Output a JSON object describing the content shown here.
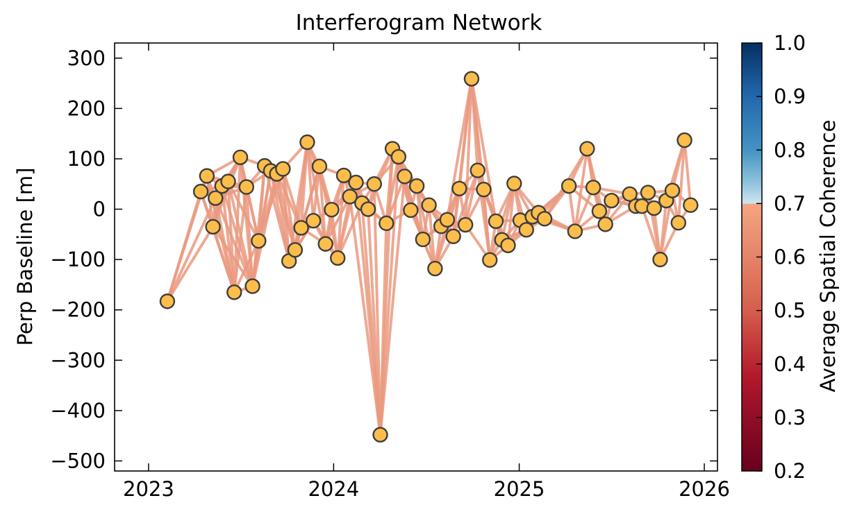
{
  "chart_data": {
    "type": "scatter",
    "title": "Interferogram Network",
    "xlabel": "",
    "ylabel": "Perp Baseline [m]",
    "xlim": [
      "2022-10-26",
      "2026-01-27"
    ],
    "ylim": [
      -520,
      330
    ],
    "x_ticks": [
      "2023",
      "2024",
      "2025",
      "2026"
    ],
    "y_ticks": [
      300,
      200,
      100,
      0,
      -100,
      -200,
      -300,
      -400,
      -500
    ],
    "y_tick_labels": [
      "300",
      "200",
      "100",
      "0",
      "−100",
      "−200",
      "−300",
      "−400",
      "−500"
    ],
    "grid": false,
    "node_color": "#fdbd4a",
    "node_edge_color": "#3d3d3d",
    "edge_color": "#ea9a80",
    "colorbar": {
      "label": "Average Spatial Coherence",
      "colormap": "RdBu",
      "range": [
        0.2,
        1.0
      ],
      "grey_above": 0.7,
      "ticks": [
        1.0,
        0.9,
        0.8,
        0.7,
        0.6,
        0.5,
        0.4,
        0.3,
        0.2
      ],
      "tick_labels": [
        "1.0",
        "0.9",
        "0.8",
        "0.7",
        "0.6",
        "0.5",
        "0.4",
        "0.3",
        "0.2"
      ]
    },
    "nodes": [
      {
        "date": "2023-02-07",
        "bperp": -183
      },
      {
        "date": "2023-04-14",
        "bperp": 35
      },
      {
        "date": "2023-04-26",
        "bperp": 66
      },
      {
        "date": "2023-05-08",
        "bperp": -35
      },
      {
        "date": "2023-05-13",
        "bperp": 22
      },
      {
        "date": "2023-05-26",
        "bperp": 46
      },
      {
        "date": "2023-06-07",
        "bperp": 55
      },
      {
        "date": "2023-06-19",
        "bperp": -165
      },
      {
        "date": "2023-07-01",
        "bperp": 103
      },
      {
        "date": "2023-07-13",
        "bperp": 44
      },
      {
        "date": "2023-07-25",
        "bperp": -153
      },
      {
        "date": "2023-08-06",
        "bperp": -63
      },
      {
        "date": "2023-08-18",
        "bperp": 86
      },
      {
        "date": "2023-08-30",
        "bperp": 76
      },
      {
        "date": "2023-09-11",
        "bperp": 70
      },
      {
        "date": "2023-09-23",
        "bperp": 80
      },
      {
        "date": "2023-10-05",
        "bperp": -103
      },
      {
        "date": "2023-10-17",
        "bperp": -81
      },
      {
        "date": "2023-10-29",
        "bperp": -37
      },
      {
        "date": "2023-11-10",
        "bperp": 133
      },
      {
        "date": "2023-11-22",
        "bperp": -23
      },
      {
        "date": "2023-12-04",
        "bperp": 85
      },
      {
        "date": "2023-12-16",
        "bperp": -69
      },
      {
        "date": "2023-12-28",
        "bperp": -1
      },
      {
        "date": "2024-01-09",
        "bperp": -97
      },
      {
        "date": "2024-01-21",
        "bperp": 67
      },
      {
        "date": "2024-02-02",
        "bperp": 25
      },
      {
        "date": "2024-02-14",
        "bperp": 53
      },
      {
        "date": "2024-02-26",
        "bperp": 12
      },
      {
        "date": "2024-03-09",
        "bperp": 0
      },
      {
        "date": "2024-03-21",
        "bperp": 50
      },
      {
        "date": "2024-04-02",
        "bperp": -448
      },
      {
        "date": "2024-04-14",
        "bperp": -28
      },
      {
        "date": "2024-04-26",
        "bperp": 120
      },
      {
        "date": "2024-05-08",
        "bperp": 104
      },
      {
        "date": "2024-05-20",
        "bperp": 65
      },
      {
        "date": "2024-06-01",
        "bperp": -2
      },
      {
        "date": "2024-06-13",
        "bperp": 46
      },
      {
        "date": "2024-06-25",
        "bperp": -60
      },
      {
        "date": "2024-07-07",
        "bperp": 8
      },
      {
        "date": "2024-07-19",
        "bperp": -118
      },
      {
        "date": "2024-07-31",
        "bperp": -34
      },
      {
        "date": "2024-08-12",
        "bperp": -21
      },
      {
        "date": "2024-08-24",
        "bperp": -54
      },
      {
        "date": "2024-09-05",
        "bperp": 41
      },
      {
        "date": "2024-09-17",
        "bperp": -31
      },
      {
        "date": "2024-09-29",
        "bperp": 259
      },
      {
        "date": "2024-10-11",
        "bperp": 77
      },
      {
        "date": "2024-10-23",
        "bperp": 39
      },
      {
        "date": "2024-11-04",
        "bperp": -101
      },
      {
        "date": "2024-11-16",
        "bperp": -24
      },
      {
        "date": "2024-11-28",
        "bperp": -61
      },
      {
        "date": "2024-12-10",
        "bperp": -72
      },
      {
        "date": "2024-12-22",
        "bperp": 51
      },
      {
        "date": "2025-01-03",
        "bperp": -22
      },
      {
        "date": "2025-01-15",
        "bperp": -41
      },
      {
        "date": "2025-01-27",
        "bperp": -15
      },
      {
        "date": "2025-02-08",
        "bperp": -7
      },
      {
        "date": "2025-02-20",
        "bperp": -19
      },
      {
        "date": "2025-04-09",
        "bperp": 46
      },
      {
        "date": "2025-04-21",
        "bperp": -44
      },
      {
        "date": "2025-05-15",
        "bperp": 120
      },
      {
        "date": "2025-05-27",
        "bperp": 43
      },
      {
        "date": "2025-06-08",
        "bperp": -4
      },
      {
        "date": "2025-06-20",
        "bperp": -30
      },
      {
        "date": "2025-07-02",
        "bperp": 17
      },
      {
        "date": "2025-08-07",
        "bperp": 30
      },
      {
        "date": "2025-08-19",
        "bperp": 6
      },
      {
        "date": "2025-08-31",
        "bperp": 6
      },
      {
        "date": "2025-09-12",
        "bperp": 33
      },
      {
        "date": "2025-09-24",
        "bperp": 2
      },
      {
        "date": "2025-10-06",
        "bperp": -100
      },
      {
        "date": "2025-10-18",
        "bperp": 17
      },
      {
        "date": "2025-10-30",
        "bperp": 37
      },
      {
        "date": "2025-11-11",
        "bperp": -27
      },
      {
        "date": "2025-11-23",
        "bperp": 137
      },
      {
        "date": "2025-12-05",
        "bperp": 8
      }
    ],
    "pairs": [
      [
        0,
        1
      ],
      [
        0,
        2
      ],
      [
        0,
        3
      ],
      [
        0,
        4
      ],
      [
        1,
        2
      ],
      [
        1,
        3
      ],
      [
        1,
        4
      ],
      [
        1,
        5
      ],
      [
        1,
        7
      ],
      [
        2,
        3
      ],
      [
        2,
        4
      ],
      [
        2,
        5
      ],
      [
        2,
        6
      ],
      [
        2,
        7
      ],
      [
        2,
        8
      ],
      [
        3,
        4
      ],
      [
        3,
        5
      ],
      [
        3,
        6
      ],
      [
        3,
        7
      ],
      [
        3,
        8
      ],
      [
        3,
        10
      ],
      [
        4,
        5
      ],
      [
        4,
        6
      ],
      [
        4,
        7
      ],
      [
        4,
        8
      ],
      [
        4,
        9
      ],
      [
        4,
        10
      ],
      [
        5,
        6
      ],
      [
        5,
        7
      ],
      [
        5,
        8
      ],
      [
        5,
        9
      ],
      [
        5,
        10
      ],
      [
        6,
        7
      ],
      [
        6,
        8
      ],
      [
        6,
        9
      ],
      [
        6,
        10
      ],
      [
        6,
        11
      ],
      [
        7,
        8
      ],
      [
        7,
        9
      ],
      [
        7,
        10
      ],
      [
        7,
        11
      ],
      [
        8,
        9
      ],
      [
        8,
        10
      ],
      [
        8,
        11
      ],
      [
        8,
        12
      ],
      [
        9,
        10
      ],
      [
        9,
        11
      ],
      [
        9,
        12
      ],
      [
        9,
        13
      ],
      [
        10,
        11
      ],
      [
        10,
        12
      ],
      [
        10,
        13
      ],
      [
        10,
        14
      ],
      [
        11,
        12
      ],
      [
        11,
        13
      ],
      [
        11,
        14
      ],
      [
        11,
        15
      ],
      [
        12,
        13
      ],
      [
        12,
        14
      ],
      [
        12,
        15
      ],
      [
        12,
        16
      ],
      [
        13,
        14
      ],
      [
        13,
        15
      ],
      [
        13,
        16
      ],
      [
        13,
        17
      ],
      [
        14,
        15
      ],
      [
        14,
        16
      ],
      [
        14,
        17
      ],
      [
        14,
        18
      ],
      [
        15,
        16
      ],
      [
        15,
        17
      ],
      [
        15,
        18
      ],
      [
        15,
        19
      ],
      [
        16,
        17
      ],
      [
        16,
        18
      ],
      [
        16,
        19
      ],
      [
        16,
        20
      ],
      [
        17,
        18
      ],
      [
        17,
        19
      ],
      [
        17,
        20
      ],
      [
        17,
        21
      ],
      [
        18,
        19
      ],
      [
        18,
        20
      ],
      [
        18,
        21
      ],
      [
        18,
        22
      ],
      [
        19,
        20
      ],
      [
        19,
        21
      ],
      [
        19,
        22
      ],
      [
        19,
        23
      ],
      [
        20,
        21
      ],
      [
        20,
        22
      ],
      [
        20,
        23
      ],
      [
        20,
        24
      ],
      [
        21,
        22
      ],
      [
        21,
        23
      ],
      [
        21,
        24
      ],
      [
        21,
        25
      ],
      [
        22,
        23
      ],
      [
        22,
        24
      ],
      [
        22,
        25
      ],
      [
        22,
        26
      ],
      [
        23,
        24
      ],
      [
        23,
        25
      ],
      [
        23,
        26
      ],
      [
        23,
        27
      ],
      [
        24,
        25
      ],
      [
        24,
        26
      ],
      [
        24,
        27
      ],
      [
        24,
        28
      ],
      [
        25,
        26
      ],
      [
        25,
        27
      ],
      [
        25,
        28
      ],
      [
        25,
        29
      ],
      [
        26,
        27
      ],
      [
        26,
        28
      ],
      [
        26,
        29
      ],
      [
        26,
        30
      ],
      [
        26,
        31
      ],
      [
        27,
        28
      ],
      [
        27,
        29
      ],
      [
        27,
        30
      ],
      [
        27,
        31
      ],
      [
        28,
        29
      ],
      [
        28,
        30
      ],
      [
        28,
        31
      ],
      [
        28,
        32
      ],
      [
        29,
        30
      ],
      [
        29,
        31
      ],
      [
        29,
        32
      ],
      [
        29,
        33
      ],
      [
        30,
        31
      ],
      [
        30,
        32
      ],
      [
        30,
        33
      ],
      [
        30,
        34
      ],
      [
        31,
        32
      ],
      [
        31,
        33
      ],
      [
        31,
        34
      ],
      [
        31,
        35
      ],
      [
        32,
        33
      ],
      [
        32,
        34
      ],
      [
        32,
        35
      ],
      [
        32,
        36
      ],
      [
        33,
        34
      ],
      [
        33,
        35
      ],
      [
        33,
        36
      ],
      [
        33,
        37
      ],
      [
        34,
        35
      ],
      [
        34,
        36
      ],
      [
        34,
        37
      ],
      [
        34,
        38
      ],
      [
        35,
        36
      ],
      [
        35,
        37
      ],
      [
        35,
        38
      ],
      [
        35,
        39
      ],
      [
        36,
        37
      ],
      [
        36,
        38
      ],
      [
        36,
        39
      ],
      [
        36,
        40
      ],
      [
        37,
        38
      ],
      [
        37,
        39
      ],
      [
        37,
        40
      ],
      [
        37,
        41
      ],
      [
        38,
        39
      ],
      [
        38,
        40
      ],
      [
        38,
        41
      ],
      [
        38,
        42
      ],
      [
        39,
        40
      ],
      [
        39,
        41
      ],
      [
        39,
        42
      ],
      [
        39,
        43
      ],
      [
        40,
        41
      ],
      [
        40,
        42
      ],
      [
        40,
        43
      ],
      [
        40,
        44
      ],
      [
        41,
        42
      ],
      [
        41,
        43
      ],
      [
        41,
        44
      ],
      [
        41,
        45
      ],
      [
        42,
        43
      ],
      [
        42,
        44
      ],
      [
        42,
        45
      ],
      [
        42,
        46
      ],
      [
        43,
        44
      ],
      [
        43,
        45
      ],
      [
        43,
        46
      ],
      [
        43,
        47
      ],
      [
        44,
        45
      ],
      [
        44,
        46
      ],
      [
        44,
        47
      ],
      [
        44,
        48
      ],
      [
        45,
        46
      ],
      [
        45,
        47
      ],
      [
        45,
        48
      ],
      [
        45,
        49
      ],
      [
        46,
        47
      ],
      [
        46,
        48
      ],
      [
        46,
        49
      ],
      [
        46,
        50
      ],
      [
        47,
        48
      ],
      [
        47,
        49
      ],
      [
        47,
        50
      ],
      [
        47,
        51
      ],
      [
        48,
        49
      ],
      [
        48,
        50
      ],
      [
        48,
        51
      ],
      [
        48,
        52
      ],
      [
        49,
        50
      ],
      [
        49,
        51
      ],
      [
        49,
        52
      ],
      [
        49,
        53
      ],
      [
        50,
        51
      ],
      [
        50,
        52
      ],
      [
        50,
        53
      ],
      [
        50,
        54
      ],
      [
        51,
        52
      ],
      [
        51,
        53
      ],
      [
        51,
        54
      ],
      [
        51,
        55
      ],
      [
        52,
        53
      ],
      [
        52,
        54
      ],
      [
        52,
        55
      ],
      [
        52,
        56
      ],
      [
        53,
        54
      ],
      [
        53,
        55
      ],
      [
        53,
        56
      ],
      [
        53,
        57
      ],
      [
        54,
        55
      ],
      [
        54,
        56
      ],
      [
        54,
        57
      ],
      [
        54,
        58
      ],
      [
        55,
        56
      ],
      [
        55,
        57
      ],
      [
        55,
        58
      ],
      [
        55,
        59
      ],
      [
        56,
        57
      ],
      [
        56,
        58
      ],
      [
        56,
        59
      ],
      [
        56,
        60
      ],
      [
        57,
        58
      ],
      [
        57,
        59
      ],
      [
        57,
        60
      ],
      [
        58,
        59
      ],
      [
        58,
        60
      ],
      [
        58,
        61
      ],
      [
        59,
        60
      ],
      [
        59,
        61
      ],
      [
        59,
        62
      ],
      [
        59,
        63
      ],
      [
        60,
        61
      ],
      [
        60,
        62
      ],
      [
        60,
        63
      ],
      [
        60,
        64
      ],
      [
        61,
        62
      ],
      [
        61,
        63
      ],
      [
        61,
        64
      ],
      [
        62,
        63
      ],
      [
        62,
        64
      ],
      [
        62,
        65
      ],
      [
        62,
        66
      ],
      [
        63,
        64
      ],
      [
        63,
        65
      ],
      [
        63,
        66
      ],
      [
        64,
        65
      ],
      [
        64,
        66
      ],
      [
        64,
        67
      ],
      [
        65,
        66
      ],
      [
        65,
        67
      ],
      [
        65,
        68
      ],
      [
        66,
        67
      ],
      [
        66,
        68
      ],
      [
        66,
        69
      ],
      [
        66,
        70
      ],
      [
        67,
        68
      ],
      [
        67,
        69
      ],
      [
        67,
        70
      ],
      [
        68,
        69
      ],
      [
        68,
        70
      ],
      [
        68,
        71
      ],
      [
        69,
        70
      ],
      [
        69,
        71
      ],
      [
        69,
        72
      ],
      [
        69,
        73
      ],
      [
        70,
        71
      ],
      [
        70,
        72
      ],
      [
        70,
        73
      ],
      [
        71,
        72
      ],
      [
        71,
        73
      ],
      [
        71,
        74
      ],
      [
        72,
        73
      ],
      [
        72,
        74
      ],
      [
        72,
        75
      ],
      [
        73,
        74
      ],
      [
        73,
        75
      ],
      [
        73,
        76
      ],
      [
        74,
        75
      ],
      [
        74,
        76
      ],
      [
        75,
        76
      ]
    ]
  }
}
